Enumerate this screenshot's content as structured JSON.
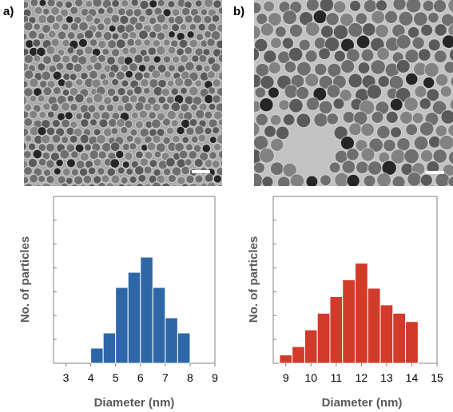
{
  "panels": [
    {
      "label": "a)"
    },
    {
      "label": "b)"
    }
  ],
  "colors": {
    "blue_bar": "#2e67a8",
    "red_bar": "#d23a2a",
    "axis": "#808080",
    "tem_background_a": "#a7a7a7",
    "tem_background_b": "#c2c2c2"
  },
  "chart_data": [
    {
      "type": "bar",
      "panel": "a",
      "xlabel": "Diameter (nm)",
      "ylabel": "No. of particles",
      "xlim": [
        2.5,
        9
      ],
      "ylim": [
        0,
        11
      ],
      "x_ticks": [
        "3",
        "4",
        "5",
        "6",
        "7",
        "8",
        "9"
      ],
      "bin_width": 0.5,
      "bin_starts": [
        4.0,
        4.5,
        5.0,
        5.5,
        6.0,
        6.5,
        7.0,
        7.5
      ],
      "values": [
        1,
        2,
        5,
        6,
        7,
        5,
        3,
        2
      ],
      "y_ticks_labeled": false,
      "grid": false,
      "color": "#2e67a8"
    },
    {
      "type": "bar",
      "panel": "b",
      "xlabel": "Diameter (nm)",
      "ylabel": "No. of particles",
      "xlim": [
        8.5,
        15
      ],
      "ylim": [
        0,
        10
      ],
      "x_ticks": [
        "9",
        "10",
        "11",
        "12",
        "13",
        "14",
        "15"
      ],
      "bin_width": 0.5,
      "bin_starts": [
        8.75,
        9.25,
        9.75,
        10.25,
        10.75,
        11.25,
        11.75,
        12.25,
        12.75,
        13.25,
        13.75
      ],
      "values": [
        0.5,
        1,
        2,
        3,
        4,
        5,
        6,
        4.5,
        3.5,
        3,
        2.5
      ],
      "y_ticks_labeled": false,
      "grid": false,
      "color": "#d23a2a"
    }
  ]
}
